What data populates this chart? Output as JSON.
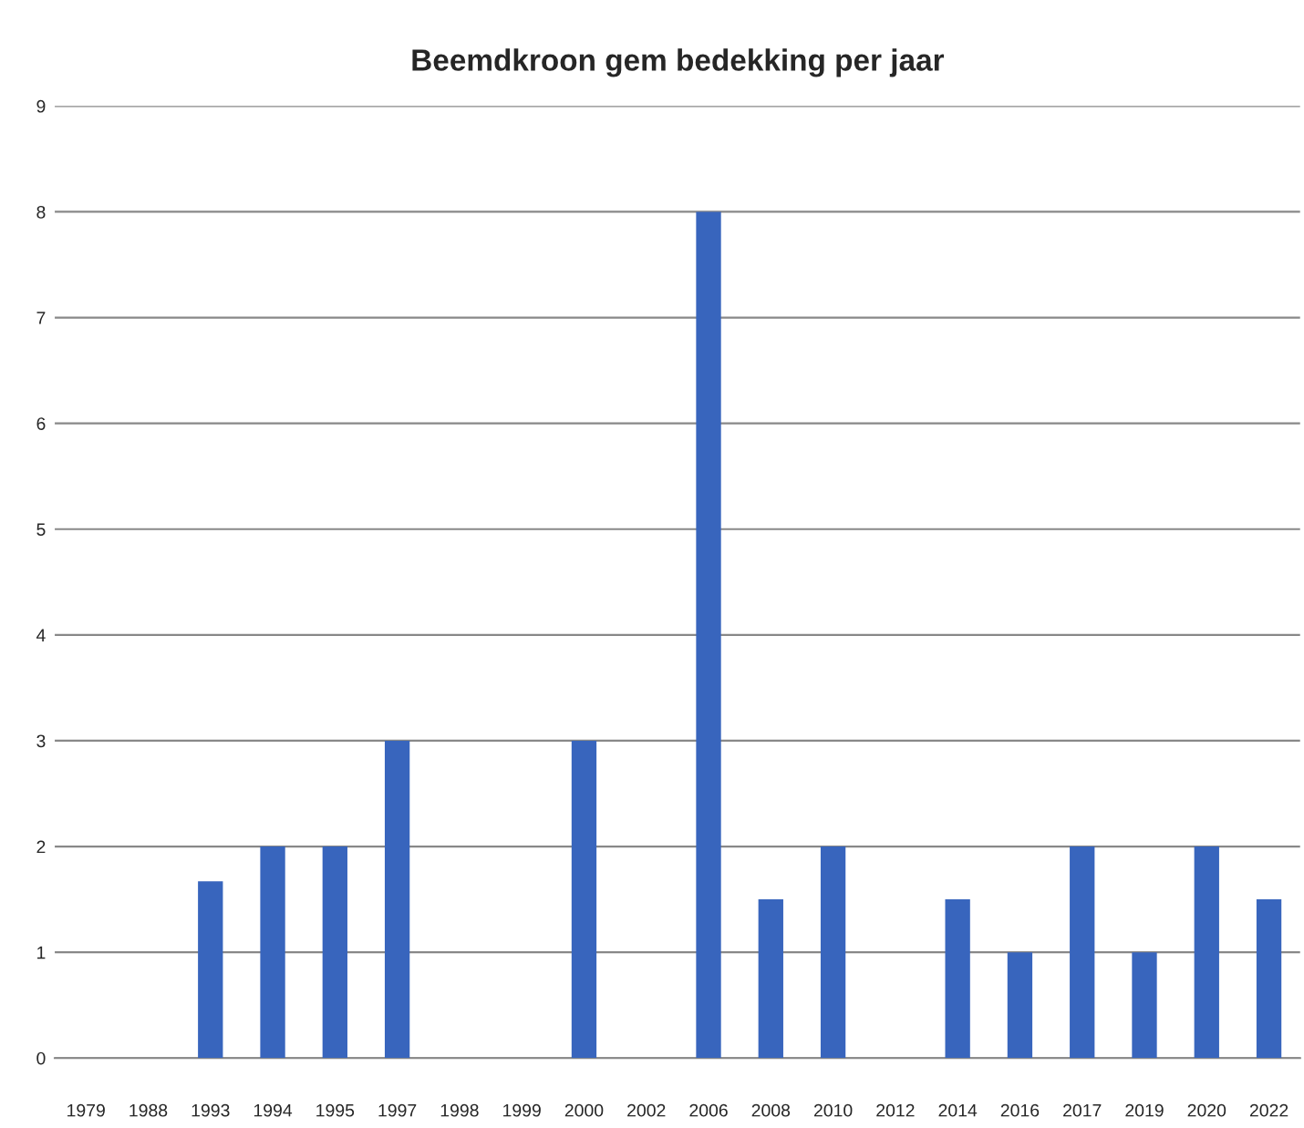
{
  "chart_data": {
    "type": "bar",
    "title": "Beemdkroon gem bedekking per jaar",
    "categories": [
      "1979",
      "1988",
      "1993",
      "1994",
      "1995",
      "1997",
      "1998",
      "1999",
      "2000",
      "2002",
      "2006",
      "2008",
      "2010",
      "2012",
      "2014",
      "2016",
      "2017",
      "2019",
      "2020",
      "2022"
    ],
    "values": [
      null,
      null,
      1.67,
      2,
      2,
      3,
      null,
      null,
      3,
      null,
      8,
      1.5,
      2,
      null,
      1.5,
      1,
      2,
      1,
      2,
      1.5
    ],
    "color": "#3865bd",
    "ylim": [
      0,
      9
    ],
    "yticks": [
      0,
      1,
      2,
      3,
      4,
      5,
      6,
      7,
      8,
      9
    ],
    "grid": "y"
  }
}
